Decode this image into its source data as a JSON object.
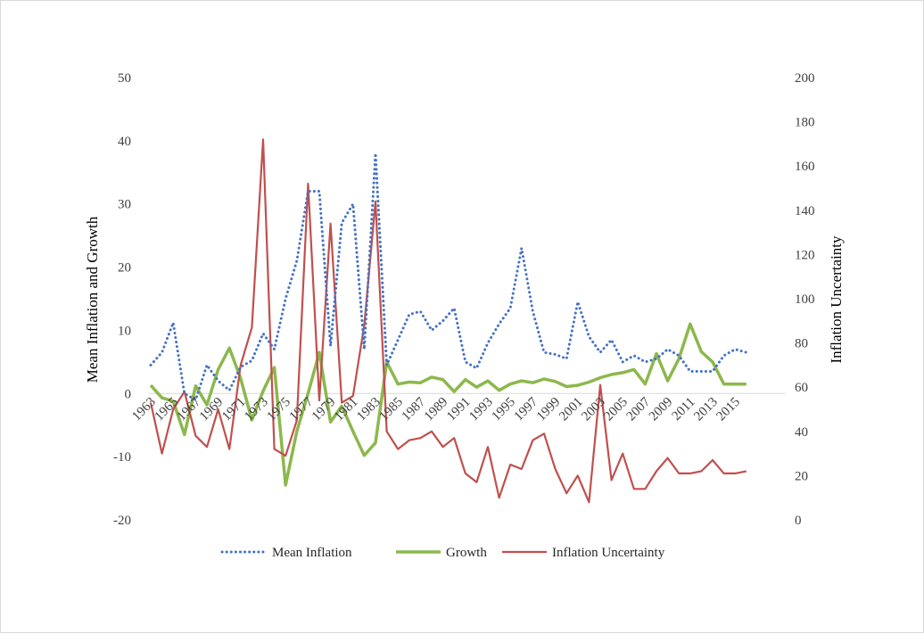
{
  "chart_data": {
    "type": "line",
    "title": "",
    "ylabel": "Mean Inflation and Growth",
    "y2label": "Inflation Uncertainty",
    "ylim": [
      -20,
      50
    ],
    "y2lim": [
      0,
      200
    ],
    "yticks": [
      -20,
      -10,
      0,
      10,
      20,
      30,
      40,
      50
    ],
    "y2ticks": [
      0,
      20,
      40,
      60,
      80,
      100,
      120,
      140,
      160,
      180,
      200
    ],
    "categories": [
      1963,
      1964,
      1965,
      1966,
      1967,
      1968,
      1969,
      1970,
      1971,
      1972,
      1973,
      1974,
      1975,
      1976,
      1977,
      1978,
      1979,
      1980,
      1981,
      1982,
      1983,
      1984,
      1985,
      1986,
      1987,
      1988,
      1989,
      1990,
      1991,
      1992,
      1993,
      1994,
      1995,
      1996,
      1997,
      1998,
      1999,
      2000,
      2001,
      2002,
      2003,
      2004,
      2005,
      2006,
      2007,
      2008,
      2009,
      2010,
      2011,
      2012,
      2013,
      2014,
      2015,
      2016
    ],
    "xtick_labels": [
      "1963",
      "1965",
      "1967",
      "1969",
      "1971",
      "1973",
      "1975",
      "1977",
      "1979",
      "1981",
      "1983",
      "1985",
      "1987",
      "1989",
      "1991",
      "1993",
      "1995",
      "1997",
      "1999",
      "2001",
      "2003",
      "2005",
      "2007",
      "2009",
      "2011",
      "2013",
      "2015"
    ],
    "legend_position": "bottom",
    "grid": false,
    "series": [
      {
        "name": "Mean Inflation",
        "axis": "left",
        "style": "dotted",
        "color": "#4472c4",
        "values": [
          4.5,
          6.5,
          11.2,
          0,
          -1,
          4.5,
          2.0,
          0.5,
          4.2,
          5.2,
          9.5,
          7.0,
          15.0,
          21.0,
          32.0,
          32.0,
          7.5,
          27.0,
          30.0,
          7.0,
          38.0,
          4.5,
          8.5,
          12.5,
          13.0,
          10.0,
          11.5,
          13.5,
          5.0,
          4.0,
          8.0,
          11.0,
          13.5,
          23.0,
          13.0,
          6.5,
          6.2,
          5.5,
          14.5,
          9.0,
          6.5,
          8.5,
          5.0,
          6.0,
          5.0,
          5.5,
          7.0,
          6.0,
          3.5,
          3.5,
          3.5,
          6.0,
          7.0,
          6.5
        ]
      },
      {
        "name": "Growth",
        "axis": "left",
        "style": "solid",
        "color": "#8cb84c",
        "values": [
          1.3,
          -0.7,
          -1.2,
          -6.5,
          1.2,
          -1.8,
          3.8,
          7.2,
          2.4,
          -4.2,
          0.4,
          4.1,
          -14.5,
          -6.0,
          0.0,
          6.5,
          -4.5,
          -2.0,
          -6.0,
          -9.8,
          -7.8,
          5.0,
          1.5,
          1.8,
          1.7,
          2.6,
          2.2,
          0.3,
          2.2,
          1.0,
          2.0,
          0.5,
          1.5,
          2.0,
          1.7,
          2.3,
          1.9,
          1.1,
          1.3,
          1.8,
          2.5,
          3.0,
          3.3,
          3.8,
          1.5,
          6.3,
          2.0,
          5.5,
          11.0,
          6.6,
          5.0,
          1.5,
          1.5,
          1.5
        ]
      },
      {
        "name": "Inflation Uncertainty",
        "axis": "right",
        "style": "solid",
        "color": "#c0504d",
        "values": [
          53,
          30,
          50,
          58,
          38,
          33,
          50,
          32,
          70,
          87,
          172,
          32,
          29,
          45,
          152,
          54,
          134,
          53,
          56,
          88,
          144,
          40,
          32,
          36,
          37,
          40,
          33,
          37,
          21,
          17,
          33,
          10,
          25,
          23,
          36,
          39,
          23,
          12,
          20,
          8,
          61,
          18,
          30,
          14,
          14,
          22,
          28,
          21,
          21,
          22,
          27,
          21,
          21,
          22
        ]
      }
    ]
  }
}
